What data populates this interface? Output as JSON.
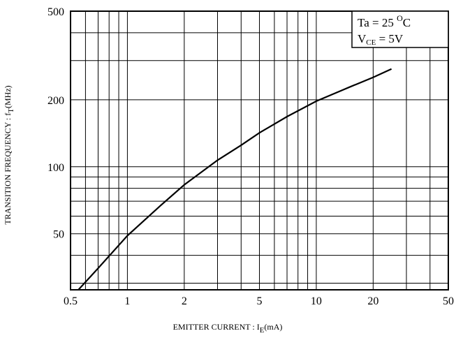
{
  "chart_data": {
    "type": "line",
    "title": "",
    "x_scale": "log",
    "y_scale": "log",
    "xlim": [
      0.5,
      50
    ],
    "ylim": [
      28,
      500
    ],
    "grid": true,
    "xlabel": {
      "main": "EMITTER  CURRENT : I",
      "subscript": "E",
      "suffix": "(mA)"
    },
    "ylabel": {
      "main": "TRANSITION  FREQUENCY : f",
      "subscript": "T",
      "suffix": "(MHz)"
    },
    "x_ticks": [
      {
        "value": 0.5,
        "label": "0.5"
      },
      {
        "value": 1,
        "label": "1"
      },
      {
        "value": 2,
        "label": "2"
      },
      {
        "value": 5,
        "label": "5"
      },
      {
        "value": 10,
        "label": "10"
      },
      {
        "value": 20,
        "label": "20"
      },
      {
        "value": 50,
        "label": "50"
      }
    ],
    "x_gridlines": [
      0.6,
      0.7,
      0.8,
      0.9,
      1,
      2,
      3,
      4,
      5,
      6,
      7,
      8,
      9,
      10,
      20,
      30,
      40
    ],
    "y_ticks": [
      {
        "value": 50,
        "label": "50"
      },
      {
        "value": 100,
        "label": "100"
      },
      {
        "value": 200,
        "label": "200"
      },
      {
        "value": 500,
        "label": "500"
      }
    ],
    "y_gridlines": [
      30,
      40,
      50,
      60,
      70,
      80,
      90,
      100,
      200,
      300,
      400
    ],
    "series": [
      {
        "color": "#000000",
        "points": [
          {
            "x": 0.55,
            "y": 28
          },
          {
            "x": 0.7,
            "y": 35
          },
          {
            "x": 1,
            "y": 49
          },
          {
            "x": 1.5,
            "y": 67
          },
          {
            "x": 2,
            "y": 83
          },
          {
            "x": 3,
            "y": 107
          },
          {
            "x": 4,
            "y": 125
          },
          {
            "x": 5,
            "y": 142
          },
          {
            "x": 7,
            "y": 168
          },
          {
            "x": 10,
            "y": 197
          },
          {
            "x": 15,
            "y": 228
          },
          {
            "x": 20,
            "y": 252
          },
          {
            "x": 25,
            "y": 275
          }
        ]
      }
    ],
    "legend": {
      "position": "top-right",
      "line1": {
        "name": "Ta",
        "eq": " = 25 ",
        "sup": "O",
        "unit": "C"
      },
      "line2": {
        "name": "V",
        "subscript": "CE",
        "eq": " = 5V"
      }
    }
  }
}
